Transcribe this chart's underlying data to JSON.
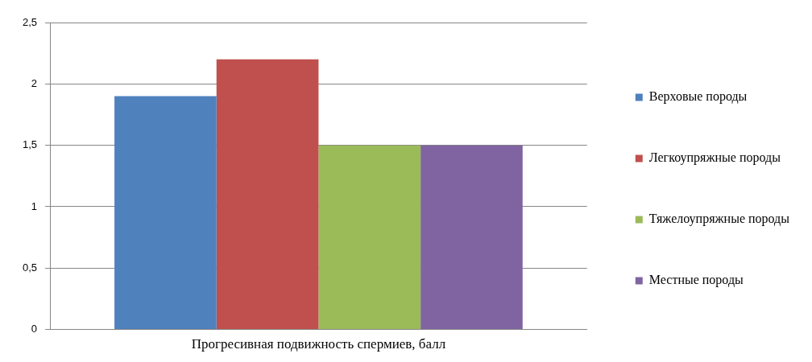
{
  "chart_data": {
    "type": "bar",
    "categories": [
      "Прогресивная подвижность спермиев, балл"
    ],
    "series": [
      {
        "name": "Верховые породы",
        "color": "#4f81bd",
        "values": [
          1.9
        ]
      },
      {
        "name": "Легкоупряжные породы",
        "color": "#c0504d",
        "values": [
          2.2
        ]
      },
      {
        "name": "Тяжелоупряжные породы",
        "color": "#9bbb59",
        "values": [
          1.5
        ]
      },
      {
        "name": "Местные породы",
        "color": "#8064a2",
        "values": [
          1.5
        ]
      }
    ],
    "ylim": [
      0,
      2.5
    ],
    "yticks": [
      0,
      {
        "value": 0.5,
        "label": "0,5"
      },
      1,
      {
        "value": 1.5,
        "label": "1,5"
      },
      2,
      {
        "value": 2.5,
        "label": "2,5"
      }
    ],
    "grid": "y",
    "legend": "right"
  }
}
